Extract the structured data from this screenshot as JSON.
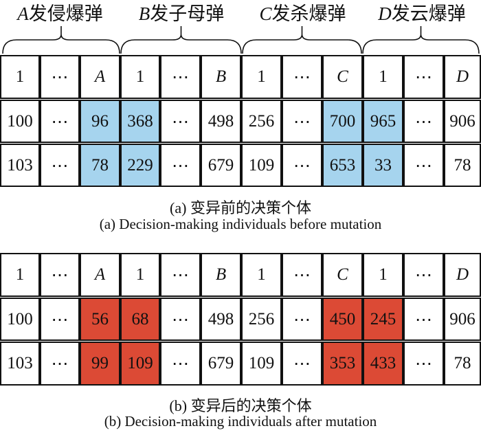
{
  "groups": [
    {
      "var": "A",
      "label": "发侵爆弹"
    },
    {
      "var": "B",
      "label": "发子母弹"
    },
    {
      "var": "C",
      "label": "发杀爆弹"
    },
    {
      "var": "D",
      "label": "发云爆弹"
    }
  ],
  "header_row": [
    "1",
    "⋯",
    "A",
    "1",
    "⋯",
    "B",
    "1",
    "⋯",
    "C",
    "1",
    "⋯",
    "D"
  ],
  "before": {
    "rows": [
      [
        "100",
        "⋯",
        "96",
        "368",
        "⋯",
        "498",
        "256",
        "⋯",
        "700",
        "965",
        "⋯",
        "906"
      ],
      [
        "103",
        "⋯",
        "78",
        "229",
        "⋯",
        "679",
        "109",
        "⋯",
        "653",
        "33",
        "⋯",
        "78"
      ]
    ],
    "caption_cn": "(a) 变异前的决策个体",
    "caption_en": "(a) Decision-making individuals before mutation"
  },
  "after": {
    "rows": [
      [
        "100",
        "⋯",
        "56",
        "68",
        "⋯",
        "498",
        "256",
        "⋯",
        "450",
        "245",
        "⋯",
        "906"
      ],
      [
        "103",
        "⋯",
        "99",
        "109",
        "⋯",
        "679",
        "109",
        "⋯",
        "353",
        "433",
        "⋯",
        "78"
      ]
    ],
    "caption_cn": "(b) 变异后的决策个体",
    "caption_en": "(b) Decision-making individuals after mutation"
  },
  "highlight_columns": [
    2,
    3,
    8,
    9
  ],
  "italic_header_columns": [
    2,
    5,
    8,
    11
  ],
  "colors": {
    "before_highlight": "#a6d4ee",
    "after_highlight": "#dc4a35",
    "border": "#111111"
  }
}
